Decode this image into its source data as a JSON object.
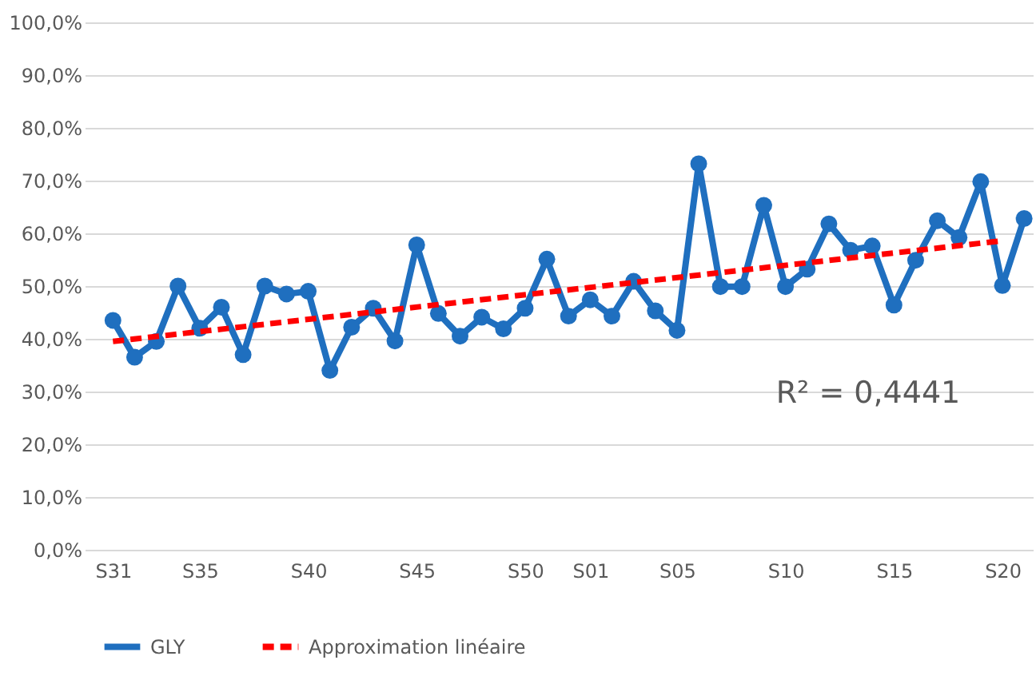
{
  "chart_data": {
    "type": "line",
    "categories": [
      "S31",
      null,
      null,
      null,
      "S35",
      null,
      null,
      null,
      null,
      "S40",
      null,
      null,
      null,
      null,
      "S45",
      null,
      null,
      null,
      null,
      "S50",
      null,
      null,
      "S01",
      null,
      null,
      null,
      "S05",
      null,
      null,
      null,
      null,
      "S10",
      null,
      null,
      null,
      null,
      "S15",
      null,
      null,
      null,
      null,
      "S20",
      null
    ],
    "series": [
      {
        "name": "GLY",
        "color": "#1f6fbf",
        "type": "line",
        "marker": "circle",
        "line_style": "solid",
        "values": [
          43.5,
          36.5,
          39.5,
          50,
          42,
          46,
          37,
          50,
          48.5,
          49,
          34,
          42.2,
          45.8,
          39.6,
          57.8,
          44.8,
          40.5,
          44.1,
          41.9,
          45.8,
          55.1,
          44.3,
          47.4,
          44.3,
          50.9,
          45.3,
          41.6,
          73.2,
          49.9,
          49.9,
          65.3,
          49.9,
          53.2,
          61.8,
          56.8,
          57.6,
          46.4,
          54.9,
          62.4,
          59.2,
          69.8,
          50.1,
          62.8
        ]
      },
      {
        "name": "Approximation linéaire",
        "color": "#ff0000",
        "type": "line",
        "marker": "none",
        "line_style": "dashed",
        "x": [
          "S31",
          "S20"
        ],
        "values": [
          39.5,
          58.6
        ]
      }
    ],
    "ylim": [
      0,
      100
    ],
    "yticks": [
      {
        "value": 0,
        "label": "0,0%"
      },
      {
        "value": 10,
        "label": "10,0%"
      },
      {
        "value": 20,
        "label": "20,0%"
      },
      {
        "value": 30,
        "label": "30,0%"
      },
      {
        "value": 40,
        "label": "40,0%"
      },
      {
        "value": 50,
        "label": "50,0%"
      },
      {
        "value": 60,
        "label": "60,0%"
      },
      {
        "value": 70,
        "label": "70,0%"
      },
      {
        "value": 80,
        "label": "80,0%"
      },
      {
        "value": 90,
        "label": "90,0%"
      },
      {
        "value": 100,
        "label": "100,0%"
      }
    ],
    "annotations": [
      "R² = 0,4441"
    ],
    "grid": "y",
    "legend": "bottom"
  }
}
